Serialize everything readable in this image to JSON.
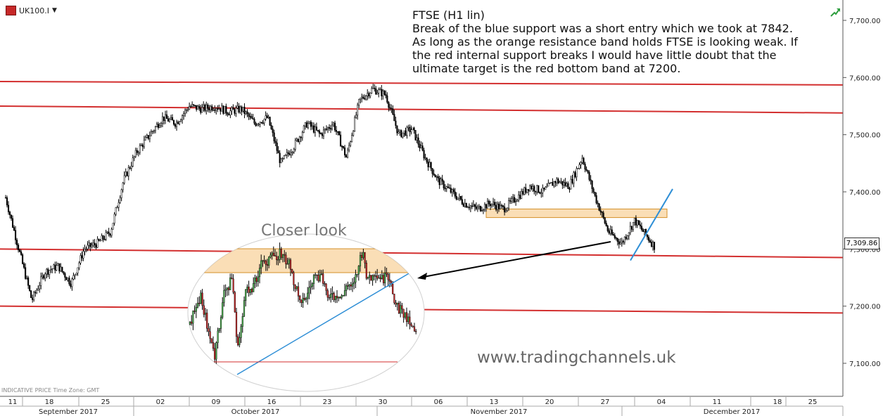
{
  "symbol": "UK100.I",
  "symbol_dropdown_icon": "caret-down-icon",
  "trend_icon": "green-arrow-icon",
  "annotation": {
    "title": "FTSE (H1 lin)",
    "lines": [
      "Break of the blue support was a short entry which we took at 7842.",
      "As long as the orange resistance band holds FTSE is looking weak. If",
      "the red internal support breaks I would have little doubt that the",
      "ultimate target is the red bottom band at 7200."
    ]
  },
  "closer_look_label": "Closer look",
  "watermark": "www.tradingchannels.uk",
  "info_text": "INDICATIVE PRICE   Time Zone: GMT",
  "current_price": "7,309.86",
  "colors": {
    "red_line": "#d32f2f",
    "blue_line": "#2f8fd6",
    "orange_band": "#f6c27a",
    "candle": "#000000"
  },
  "chart_data": {
    "type": "candlestick",
    "title": "",
    "ylim": [
      7050,
      7750
    ],
    "y_ticks": [
      "7,100.00",
      "7,200.00",
      "7,300.00",
      "7,400.00",
      "7,500.00",
      "7,600.00",
      "7,700.00"
    ],
    "y_tick_values": [
      7100,
      7200,
      7300,
      7400,
      7500,
      7600,
      7700
    ],
    "x_day_ticks": [
      "11",
      "18",
      "25",
      "02",
      "09",
      "16",
      "23",
      "30",
      "06",
      "13",
      "20",
      "27",
      "04",
      "11",
      "18",
      "25"
    ],
    "month_labels": [
      "September 2017",
      "October 2017",
      "November 2017",
      "December 2017"
    ],
    "approx_close_path": [
      [
        0,
        7390
      ],
      [
        2,
        7300
      ],
      [
        4,
        7210
      ],
      [
        6,
        7260
      ],
      [
        8,
        7270
      ],
      [
        10,
        7240
      ],
      [
        12,
        7300
      ],
      [
        14,
        7310
      ],
      [
        16,
        7330
      ],
      [
        18,
        7420
      ],
      [
        20,
        7470
      ],
      [
        22,
        7500
      ],
      [
        24,
        7530
      ],
      [
        26,
        7520
      ],
      [
        28,
        7550
      ],
      [
        30,
        7545
      ],
      [
        32,
        7550
      ],
      [
        34,
        7540
      ],
      [
        36,
        7545
      ],
      [
        38,
        7520
      ],
      [
        40,
        7530
      ],
      [
        42,
        7450
      ],
      [
        44,
        7480
      ],
      [
        46,
        7520
      ],
      [
        48,
        7500
      ],
      [
        50,
        7520
      ],
      [
        52,
        7460
      ],
      [
        54,
        7560
      ],
      [
        56,
        7580
      ],
      [
        58,
        7570
      ],
      [
        60,
        7500
      ],
      [
        62,
        7510
      ],
      [
        64,
        7460
      ],
      [
        66,
        7420
      ],
      [
        68,
        7400
      ],
      [
        70,
        7380
      ],
      [
        72,
        7370
      ],
      [
        74,
        7380
      ],
      [
        76,
        7370
      ],
      [
        78,
        7390
      ],
      [
        80,
        7410
      ],
      [
        82,
        7400
      ],
      [
        84,
        7420
      ],
      [
        86,
        7410
      ],
      [
        88,
        7460
      ],
      [
        90,
        7390
      ],
      [
        92,
        7330
      ],
      [
        94,
        7310
      ],
      [
        96,
        7350
      ],
      [
        98,
        7320
      ],
      [
        99,
        7305
      ]
    ],
    "lines": [
      {
        "name": "red top band upper",
        "color": "red",
        "y_start": 7593,
        "y_end": 7587
      },
      {
        "name": "red top band lower",
        "color": "red",
        "y_start": 7550,
        "y_end": 7538
      },
      {
        "name": "red internal support",
        "color": "red",
        "y_start": 7300,
        "y_end": 7285
      },
      {
        "name": "red bottom band",
        "color": "red",
        "y_start": 7200,
        "y_end": 7188
      }
    ],
    "orange_band": {
      "from": 7355,
      "to": 7370
    },
    "blue_support": {
      "from_y": 7280,
      "to_y": 7405
    }
  }
}
